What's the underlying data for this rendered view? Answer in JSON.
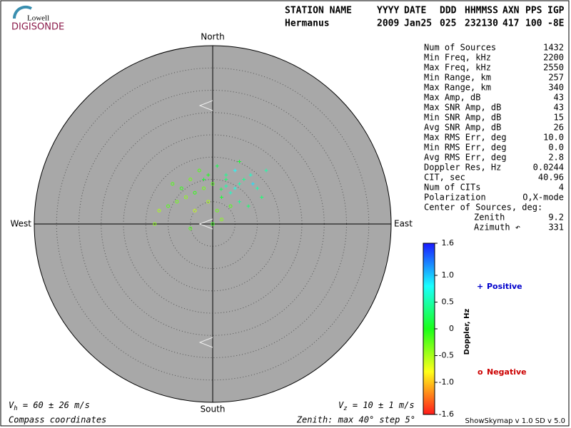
{
  "header": {
    "logo_small": "Lowell",
    "logo_big": "DIGISONDE",
    "labels": [
      "STATION NAME",
      "YYYY",
      "DATE",
      "DDD",
      "HHMMSS",
      "AXN",
      "PPS",
      "IGP"
    ],
    "values": [
      "Hermanus",
      "2009",
      "Jan25",
      "025",
      "232130",
      "417",
      "100",
      "-8E"
    ]
  },
  "stats": [
    [
      "Num of Sources",
      "1432"
    ],
    [
      "Min Freq, kHz",
      "2200"
    ],
    [
      "Max Freq, kHz",
      "2550"
    ],
    [
      "Min Range, km",
      "257"
    ],
    [
      "Max Range, km",
      "340"
    ],
    [
      "Max Amp, dB",
      "43"
    ],
    [
      "Max SNR Amp, dB",
      "43"
    ],
    [
      "Min SNR Amp, dB",
      "15"
    ],
    [
      "Avg SNR Amp, dB",
      "26"
    ],
    [
      "Max RMS Err, deg",
      "10.0"
    ],
    [
      "Min RMS Err, deg",
      "0.0"
    ],
    [
      "Avg RMS Err, deg",
      "2.8"
    ],
    [
      "Doppler Res, Hz",
      "0.0244"
    ],
    [
      "CIT, sec",
      "40.96"
    ],
    [
      "Num of CITs",
      "4"
    ],
    [
      "Polarization",
      "O,X-mode"
    ],
    [
      "Center of Sources, deg:"
    ],
    [
      "Zenith",
      "9.2"
    ],
    [
      "Azimuth ↶",
      "331"
    ]
  ],
  "compass": {
    "north": "North",
    "south": "South",
    "east": "East",
    "west": "West"
  },
  "skymap": {
    "rings": {
      "max": 40,
      "step": 5
    },
    "points": [
      [
        1.9,
        7.8,
        0.2
      ],
      [
        3,
        8.5,
        0.5
      ],
      [
        4,
        7,
        0.6
      ],
      [
        5,
        8,
        0.7
      ],
      [
        6,
        9,
        0.5
      ],
      [
        7,
        10,
        0.4
      ],
      [
        8.5,
        11,
        0.6
      ],
      [
        10,
        8,
        0.5
      ],
      [
        11,
        6,
        0.3
      ],
      [
        12,
        12,
        0.5
      ],
      [
        3,
        11,
        0.4
      ],
      [
        6,
        14,
        0.1
      ],
      [
        0,
        9,
        -0.2
      ],
      [
        -2,
        8,
        -0.3
      ],
      [
        -4,
        7,
        -0.1
      ],
      [
        -5,
        10,
        -0.3
      ],
      [
        -6,
        6,
        -0.4
      ],
      [
        -8,
        5,
        -0.3
      ],
      [
        -10,
        4,
        -0.2
      ],
      [
        -12,
        3,
        -0.5
      ],
      [
        -13,
        0,
        -0.4
      ],
      [
        -7,
        8,
        -0.1
      ],
      [
        -3,
        12,
        -0.2
      ],
      [
        -1,
        5,
        -0.5
      ],
      [
        1,
        3,
        -0.3
      ],
      [
        2,
        1,
        -0.4
      ],
      [
        -5,
        -1,
        -0.2
      ],
      [
        -4,
        3,
        -0.6
      ],
      [
        1,
        13,
        0.2
      ],
      [
        4,
        4,
        -0.2
      ],
      [
        8,
        4,
        0.3
      ],
      [
        5,
        12,
        0.8
      ],
      [
        2,
        6,
        0.1
      ],
      [
        -2,
        10,
        0.1
      ],
      [
        9,
        9,
        0.9
      ],
      [
        0,
        0,
        -0.1
      ],
      [
        3,
        10,
        0.3
      ],
      [
        -9,
        9,
        -0.2
      ],
      [
        6,
        5,
        0.4
      ],
      [
        -1,
        11,
        0.0
      ]
    ]
  },
  "colorbar": {
    "label": "Doppler, Hz",
    "lim": [
      -1.6,
      1.6
    ],
    "ticks": [
      1.6,
      {
        "value": 1.0,
        "label": "1.0"
      },
      0.5,
      0,
      -0.5,
      {
        "value": -1.0,
        "label": "-1.0"
      },
      -1.6
    ]
  },
  "legend": {
    "positive_symbol": "+",
    "positive": "Positive",
    "negative_symbol": "o",
    "negative": "Negative"
  },
  "footer": {
    "vh_symbol": "V",
    "vh_sub": "h",
    "vh_text": " = 60 ± 26 m/s",
    "vz_symbol": "V",
    "vz_sub": "z",
    "vz_text": " = 10 ± 1 m/s",
    "coords": "Compass coordinates",
    "zenith": "Zenith: max 40°  step 5°",
    "version": "ShowSkymap v 1.0  SD v 5.0"
  }
}
